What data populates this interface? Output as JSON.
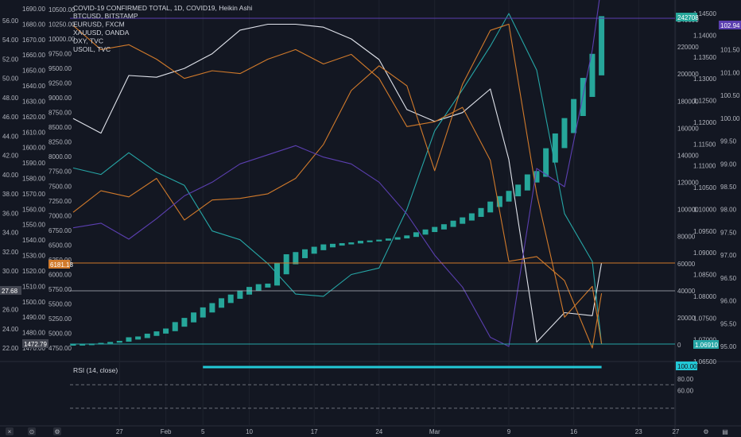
{
  "legend": {
    "title": "COVID-19 CONFIRMED TOTAL, 1D, COVID19, Heikin Ashi",
    "series": [
      "BTCUSD, BITSTAMP",
      "EURUSD, FXCM",
      "XAUUSD, OANDA",
      "DXY, TVC",
      "USOIL, TVC"
    ]
  },
  "rsi_label": "RSI (14, close)",
  "colors": {
    "background": "#131722",
    "candle": "#26a69a",
    "btc": "#e0e3eb",
    "eur": "#26a6a6",
    "xau": "#d17a2b",
    "dxy": "#5b3fb0",
    "oil": "#d17a2b",
    "rsi": "#22c8d6"
  },
  "axes": {
    "oil_ticks": [
      "56.00",
      "54.00",
      "52.00",
      "50.00",
      "48.00",
      "46.00",
      "44.00",
      "42.00",
      "40.00",
      "38.00",
      "36.00",
      "34.00",
      "32.00",
      "30.00",
      "28.00",
      "26.00",
      "24.00",
      "22.00"
    ],
    "gold_ticks": [
      "1690.00",
      "1680.00",
      "1670.00",
      "1660.00",
      "1650.00",
      "1640.00",
      "1630.00",
      "1620.00",
      "1610.00",
      "1600.00",
      "1590.00",
      "1580.00",
      "1570.00",
      "1560.00",
      "1550.00",
      "1540.00",
      "1530.00",
      "1520.00",
      "1510.00",
      "1500.00",
      "1490.00",
      "1480.00",
      "1470.00"
    ],
    "btc_ticks": [
      "10500.00",
      "10250.00",
      "10000.00",
      "9750.00",
      "9500.00",
      "9250.00",
      "9000.00",
      "8750.00",
      "8500.00",
      "8250.00",
      "8000.00",
      "7750.00",
      "7500.00",
      "7250.00",
      "7000.00",
      "6750.00",
      "6500.00",
      "6250.00",
      "6000.00",
      "5750.00",
      "5500.00",
      "5250.00",
      "5000.00",
      "4750.00"
    ],
    "covid_ticks": [
      "240000",
      "220000",
      "200000",
      "180000",
      "160000",
      "140000",
      "120000",
      "100000",
      "80000",
      "60000",
      "40000",
      "20000",
      "0"
    ],
    "eur_ticks": [
      "1.14500",
      "1.14000",
      "1.13500",
      "1.13000",
      "1.12500",
      "1.12000",
      "1.11500",
      "1.11000",
      "1.10500",
      "1.10000",
      "1.09500",
      "1.09000",
      "1.08500",
      "1.08000",
      "1.07500",
      "1.07000",
      "1.06500"
    ],
    "dxy_ticks": [
      "102.00",
      "101.50",
      "101.00",
      "100.50",
      "100.00",
      "99.50",
      "99.00",
      "98.50",
      "98.00",
      "97.50",
      "97.00",
      "96.50",
      "96.00",
      "95.50",
      "95.00"
    ],
    "rsi_ticks": [
      "80.00",
      "60.00"
    ],
    "x_ticks": [
      "27",
      "Feb",
      "5",
      "10",
      "17",
      "24",
      "Mar",
      "9",
      "16",
      "23",
      "27"
    ]
  },
  "badges": {
    "covid_last": "242708",
    "dxy_last": "102.94",
    "oil_last": "27.68",
    "gold_last": "1472.79",
    "btc_last": "6181.18",
    "eur_last": "1.06910",
    "rsi_last": "100.00"
  },
  "chart_data": {
    "type": "candlestick",
    "title": "COVID-19 CONFIRMED TOTAL, 1D, COVID19, Heikin Ashi",
    "x_range": [
      "2020-01-22",
      "2020-03-27"
    ],
    "covid_candles": [
      {
        "date": "2020-01-22",
        "open": 300,
        "close": 580
      },
      {
        "date": "2020-01-23",
        "open": 440,
        "close": 650
      },
      {
        "date": "2020-01-24",
        "open": 550,
        "close": 940
      },
      {
        "date": "2020-01-25",
        "open": 750,
        "close": 1440
      },
      {
        "date": "2020-01-26",
        "open": 1100,
        "close": 2120
      },
      {
        "date": "2020-01-27",
        "open": 1600,
        "close": 2930
      },
      {
        "date": "2020-01-28",
        "open": 2300,
        "close": 5580
      },
      {
        "date": "2020-01-29",
        "open": 3900,
        "close": 6170
      },
      {
        "date": "2020-01-30",
        "open": 5000,
        "close": 8240
      },
      {
        "date": "2020-01-31",
        "open": 6600,
        "close": 9930
      },
      {
        "date": "2020-02-01",
        "open": 8300,
        "close": 12040
      },
      {
        "date": "2020-02-02",
        "open": 10100,
        "close": 16790
      },
      {
        "date": "2020-02-03",
        "open": 13400,
        "close": 19880
      },
      {
        "date": "2020-02-04",
        "open": 16600,
        "close": 23900
      },
      {
        "date": "2020-02-05",
        "open": 20200,
        "close": 27650
      },
      {
        "date": "2020-02-06",
        "open": 23900,
        "close": 30820
      },
      {
        "date": "2020-02-07",
        "open": 27400,
        "close": 34400
      },
      {
        "date": "2020-02-08",
        "open": 30900,
        "close": 37130
      },
      {
        "date": "2020-02-09",
        "open": 34000,
        "close": 40150
      },
      {
        "date": "2020-02-10",
        "open": 37100,
        "close": 42760
      },
      {
        "date": "2020-02-11",
        "open": 39900,
        "close": 44800
      },
      {
        "date": "2020-02-12",
        "open": 42300,
        "close": 45220
      },
      {
        "date": "2020-02-13",
        "open": 43800,
        "close": 60370
      },
      {
        "date": "2020-02-14",
        "open": 52100,
        "close": 66890
      },
      {
        "date": "2020-02-15",
        "open": 59500,
        "close": 68500
      },
      {
        "date": "2020-02-16",
        "open": 64000,
        "close": 70550
      },
      {
        "date": "2020-02-17",
        "open": 67300,
        "close": 72440
      },
      {
        "date": "2020-02-18",
        "open": 69900,
        "close": 74190
      },
      {
        "date": "2020-02-19",
        "open": 72000,
        "close": 74620
      },
      {
        "date": "2020-02-20",
        "open": 73300,
        "close": 75080
      },
      {
        "date": "2020-02-21",
        "open": 74200,
        "close": 75660
      },
      {
        "date": "2020-02-22",
        "open": 74900,
        "close": 76820
      },
      {
        "date": "2020-02-23",
        "open": 75800,
        "close": 77070
      },
      {
        "date": "2020-02-24",
        "open": 76400,
        "close": 77660
      },
      {
        "date": "2020-02-25",
        "open": 77000,
        "close": 78500
      },
      {
        "date": "2020-02-26",
        "open": 77700,
        "close": 79460
      },
      {
        "date": "2020-02-27",
        "open": 78600,
        "close": 80800
      },
      {
        "date": "2020-02-28",
        "open": 79700,
        "close": 83140
      },
      {
        "date": "2020-02-29",
        "open": 81400,
        "close": 85200
      },
      {
        "date": "2020-03-01",
        "open": 83300,
        "close": 87080
      },
      {
        "date": "2020-03-02",
        "open": 85200,
        "close": 89070
      },
      {
        "date": "2020-03-03",
        "open": 87100,
        "close": 91700
      },
      {
        "date": "2020-03-04",
        "open": 89400,
        "close": 94130
      },
      {
        "date": "2020-03-05",
        "open": 91800,
        "close": 97120
      },
      {
        "date": "2020-03-06",
        "open": 94500,
        "close": 101040
      },
      {
        "date": "2020-03-07",
        "open": 97800,
        "close": 105800
      },
      {
        "date": "2020-03-08",
        "open": 101800,
        "close": 109840
      },
      {
        "date": "2020-03-09",
        "open": 105800,
        "close": 113700
      },
      {
        "date": "2020-03-10",
        "open": 109700,
        "close": 118320
      },
      {
        "date": "2020-03-11",
        "open": 114000,
        "close": 125860
      },
      {
        "date": "2020-03-12",
        "open": 119900,
        "close": 128340
      },
      {
        "date": "2020-03-13",
        "open": 124100,
        "close": 145190
      },
      {
        "date": "2020-03-14",
        "open": 134600,
        "close": 156100
      },
      {
        "date": "2020-03-15",
        "open": 145300,
        "close": 167450
      },
      {
        "date": "2020-03-16",
        "open": 156400,
        "close": 181530
      },
      {
        "date": "2020-03-17",
        "open": 169000,
        "close": 197140
      },
      {
        "date": "2020-03-18",
        "open": 183100,
        "close": 214910
      },
      {
        "date": "2020-03-19",
        "open": 199000,
        "close": 242708
      }
    ],
    "series": [
      {
        "name": "BTCUSD, BITSTAMP",
        "x": [
          "2020-01-22",
          "2020-01-25",
          "2020-01-28",
          "2020-01-31",
          "2020-02-03",
          "2020-02-06",
          "2020-02-09",
          "2020-02-12",
          "2020-02-15",
          "2020-02-18",
          "2020-02-21",
          "2020-02-24",
          "2020-02-27",
          "2020-03-01",
          "2020-03-04",
          "2020-03-07",
          "2020-03-09",
          "2020-03-12",
          "2020-03-15",
          "2020-03-18",
          "2020-03-19"
        ],
        "y": [
          8650,
          8400,
          9380,
          9350,
          9500,
          9750,
          10150,
          10250,
          10250,
          10200,
          10000,
          9650,
          8800,
          8600,
          8750,
          9150,
          7950,
          4850,
          5350,
          5300,
          6200
        ]
      },
      {
        "name": "EURUSD, FXCM",
        "x": [
          "2020-01-22",
          "2020-01-25",
          "2020-01-28",
          "2020-01-31",
          "2020-02-03",
          "2020-02-06",
          "2020-02-09",
          "2020-02-12",
          "2020-02-15",
          "2020-02-18",
          "2020-02-21",
          "2020-02-24",
          "2020-02-27",
          "2020-03-01",
          "2020-03-04",
          "2020-03-07",
          "2020-03-09",
          "2020-03-12",
          "2020-03-15",
          "2020-03-18",
          "2020-03-19"
        ],
        "y": [
          1.1095,
          1.108,
          1.113,
          1.1085,
          1.1055,
          1.095,
          1.093,
          1.0875,
          1.0805,
          1.08,
          1.085,
          1.0865,
          1.1,
          1.118,
          1.1275,
          1.1375,
          1.145,
          1.132,
          1.099,
          1.088,
          1.0691
        ]
      },
      {
        "name": "XAUUSD, OANDA",
        "x": [
          "2020-01-22",
          "2020-01-25",
          "2020-01-28",
          "2020-01-31",
          "2020-02-03",
          "2020-02-06",
          "2020-02-09",
          "2020-02-12",
          "2020-02-15",
          "2020-02-18",
          "2020-02-21",
          "2020-02-24",
          "2020-02-27",
          "2020-03-01",
          "2020-03-04",
          "2020-03-07",
          "2020-03-09",
          "2020-03-12",
          "2020-03-15",
          "2020-03-18",
          "2020-03-19"
        ],
        "y": [
          1558,
          1572,
          1568,
          1580,
          1553,
          1566,
          1567,
          1570,
          1580,
          1602,
          1637,
          1653,
          1640,
          1585,
          1641,
          1676,
          1680,
          1570,
          1490,
          1510,
          1472.79
        ]
      },
      {
        "name": "DXY, TVC",
        "x": [
          "2020-01-22",
          "2020-01-25",
          "2020-01-28",
          "2020-01-31",
          "2020-02-03",
          "2020-02-06",
          "2020-02-09",
          "2020-02-12",
          "2020-02-15",
          "2020-02-18",
          "2020-02-21",
          "2020-02-24",
          "2020-02-27",
          "2020-03-01",
          "2020-03-04",
          "2020-03-07",
          "2020-03-09",
          "2020-03-12",
          "2020-03-15",
          "2020-03-18",
          "2020-03-19"
        ],
        "y": [
          97.6,
          97.7,
          97.35,
          97.8,
          98.3,
          98.6,
          99.0,
          99.2,
          99.4,
          99.15,
          99.0,
          98.6,
          97.9,
          97.0,
          96.3,
          95.2,
          95.0,
          98.9,
          98.5,
          101.5,
          102.94
        ]
      },
      {
        "name": "USOIL, TVC",
        "x": [
          "2020-01-22",
          "2020-01-25",
          "2020-01-28",
          "2020-01-31",
          "2020-02-03",
          "2020-02-06",
          "2020-02-09",
          "2020-02-12",
          "2020-02-15",
          "2020-02-18",
          "2020-02-21",
          "2020-02-24",
          "2020-02-27",
          "2020-03-01",
          "2020-03-04",
          "2020-03-07",
          "2020-03-09",
          "2020-03-12",
          "2020-03-15",
          "2020-03-18",
          "2020-03-19"
        ],
        "y": [
          55.5,
          53.0,
          53.5,
          52.0,
          50.0,
          50.8,
          50.5,
          52.0,
          53.0,
          51.5,
          52.5,
          50.0,
          45.0,
          45.5,
          47.0,
          41.5,
          31.0,
          31.5,
          29.0,
          22.0,
          27.68
        ]
      }
    ],
    "rsi": {
      "name": "RSI (14, close)",
      "value": 100.0,
      "levels": [
        70,
        30
      ]
    }
  }
}
